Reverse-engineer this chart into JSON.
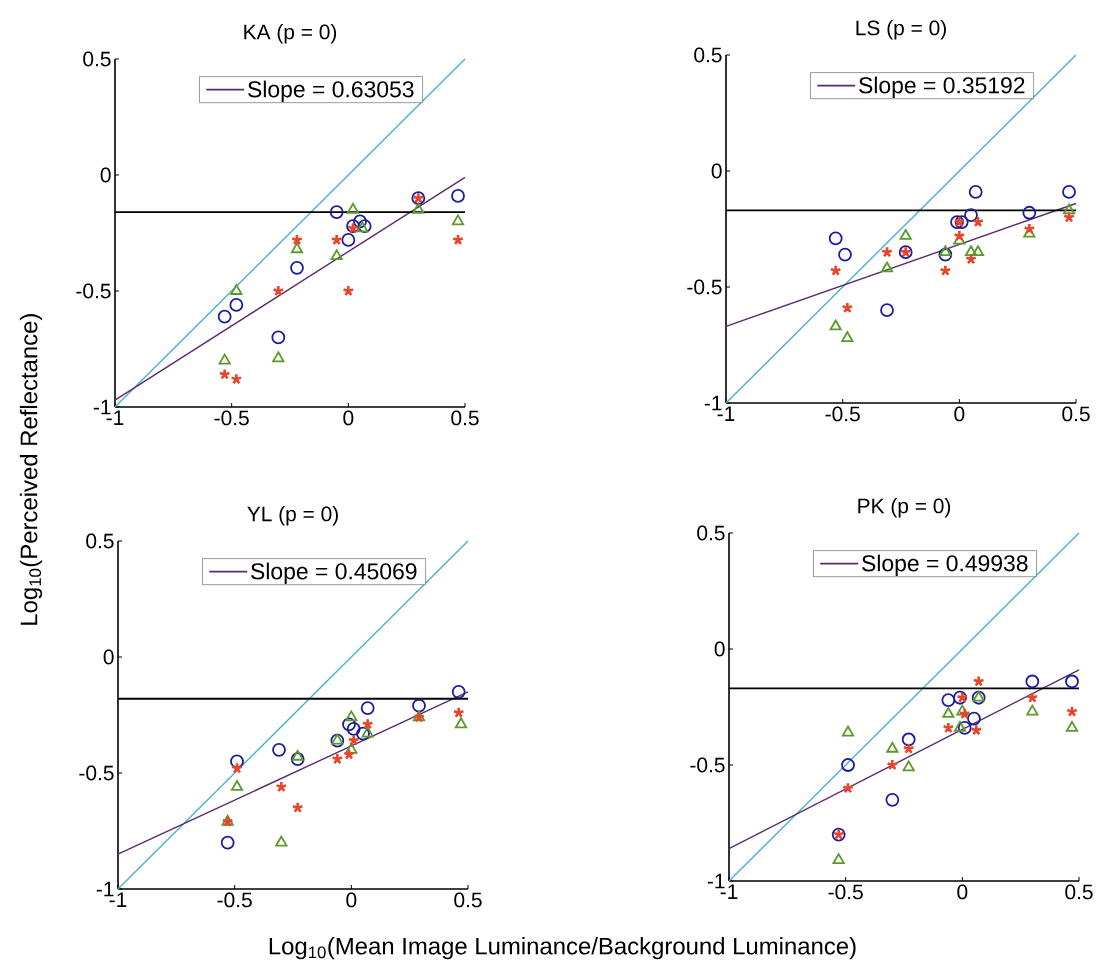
{
  "chart_data": [
    {
      "type": "scatter",
      "title": "KA (p = 0)",
      "ylabel": "Log$_{10}$(Perceived Reflectance)",
      "xlim": [
        -1,
        0.5
      ],
      "ylim": [
        -1,
        0.5
      ],
      "xticks": [
        -1,
        -0.5,
        0,
        0.5
      ],
      "yticks": [
        -1,
        -0.5,
        0,
        0.5
      ],
      "legend": "top",
      "ref_lines": [
        {
          "axis": "y",
          "value": -0.16,
          "color": "#000000"
        }
      ],
      "series": [
        {
          "type": "scatter",
          "marker": "circle",
          "color": "#1c1c9c",
          "x": [
            -0.53,
            -0.48,
            -0.3,
            -0.22,
            -0.05,
            0,
            0.02,
            0.05,
            0.07,
            0.3,
            0.47
          ],
          "values": [
            -0.61,
            -0.56,
            -0.7,
            -0.4,
            -0.16,
            -0.28,
            -0.22,
            -0.2,
            -0.22,
            -0.1,
            -0.09
          ]
        },
        {
          "type": "scatter",
          "marker": "triangle",
          "color": "#5a9a2a",
          "x": [
            -0.53,
            -0.48,
            -0.3,
            -0.22,
            -0.05,
            0.02,
            0.06,
            0.3,
            0.47
          ],
          "values": [
            -0.8,
            -0.5,
            -0.79,
            -0.32,
            -0.35,
            -0.15,
            -0.23,
            -0.15,
            -0.2
          ]
        },
        {
          "type": "scatter",
          "marker": "cross",
          "color": "#e8452a",
          "x": [
            -0.53,
            -0.48,
            -0.3,
            -0.22,
            -0.05,
            0,
            0.02,
            0.3,
            0.47
          ],
          "values": [
            -0.86,
            -0.88,
            -0.5,
            -0.28,
            -0.28,
            -0.5,
            -0.23,
            -0.1,
            -0.28
          ]
        },
        {
          "type": "line",
          "color": "#4ab0d0",
          "x": [
            -1,
            0.5
          ],
          "values": [
            -1,
            0.5
          ]
        },
        {
          "type": "line",
          "name": "Slope = 0.63053",
          "color": "#5b2a6e",
          "x": [
            -1,
            0.5
          ],
          "values": [
            -0.97,
            -0.01
          ]
        }
      ]
    },
    {
      "type": "scatter",
      "title": "LS (p = 0)",
      "xlim": [
        -1,
        0.5
      ],
      "ylim": [
        -1,
        0.5
      ],
      "xticks": [
        -1,
        -0.5,
        0,
        0.5
      ],
      "yticks": [
        -1,
        -0.5,
        0,
        0.5
      ],
      "legend": "top",
      "ref_lines": [
        {
          "axis": "y",
          "value": -0.17,
          "color": "#000000"
        }
      ],
      "series": [
        {
          "type": "scatter",
          "marker": "circle",
          "color": "#1c1c9c",
          "x": [
            -0.53,
            -0.49,
            -0.31,
            -0.23,
            -0.06,
            -0.01,
            0.01,
            0.05,
            0.07,
            0.3,
            0.47
          ],
          "values": [
            -0.29,
            -0.36,
            -0.6,
            -0.35,
            -0.36,
            -0.22,
            -0.22,
            -0.19,
            -0.09,
            -0.18,
            -0.09
          ]
        },
        {
          "type": "scatter",
          "marker": "triangle",
          "color": "#5a9a2a",
          "x": [
            -0.53,
            -0.48,
            -0.31,
            -0.23,
            -0.06,
            0,
            0.05,
            0.08,
            0.3,
            0.47
          ],
          "values": [
            -0.67,
            -0.72,
            -0.42,
            -0.28,
            -0.35,
            -0.3,
            -0.35,
            -0.35,
            -0.27,
            -0.17
          ]
        },
        {
          "type": "scatter",
          "marker": "cross",
          "color": "#e8452a",
          "x": [
            -0.53,
            -0.48,
            -0.31,
            -0.23,
            -0.06,
            0,
            0,
            0.05,
            0.08,
            0.3,
            0.47
          ],
          "values": [
            -0.43,
            -0.59,
            -0.35,
            -0.35,
            -0.43,
            -0.28,
            -0.22,
            -0.38,
            -0.22,
            -0.25,
            -0.2
          ]
        },
        {
          "type": "line",
          "color": "#4ab0d0",
          "x": [
            -1,
            0.5
          ],
          "values": [
            -1,
            0.5
          ]
        },
        {
          "type": "line",
          "name": "Slope = 0.35192",
          "color": "#5b2a6e",
          "x": [
            -1,
            0.5
          ],
          "values": [
            -0.67,
            -0.14
          ]
        }
      ]
    },
    {
      "type": "scatter",
      "title": "YL (p = 0)",
      "xlabel": "Log$_{10}$(Mean Image Luminance/Background Luminance)",
      "xlim": [
        -1,
        0.5
      ],
      "ylim": [
        -1,
        0.5
      ],
      "xticks": [
        -1,
        -0.5,
        0,
        0.5
      ],
      "yticks": [
        -1,
        -0.5,
        0,
        0.5
      ],
      "legend": "top",
      "ref_lines": [
        {
          "axis": "y",
          "value": -0.18,
          "color": "#000000"
        }
      ],
      "series": [
        {
          "type": "scatter",
          "marker": "circle",
          "color": "#1c1c9c",
          "x": [
            -0.53,
            -0.49,
            -0.31,
            -0.23,
            -0.06,
            -0.01,
            0.01,
            0.05,
            0.07,
            0.29,
            0.46
          ],
          "values": [
            -0.8,
            -0.45,
            -0.4,
            -0.44,
            -0.36,
            -0.29,
            -0.31,
            -0.33,
            -0.22,
            -0.21,
            -0.15
          ]
        },
        {
          "type": "scatter",
          "marker": "triangle",
          "color": "#5a9a2a",
          "x": [
            -0.53,
            -0.49,
            -0.3,
            -0.23,
            -0.06,
            0,
            0,
            0.07,
            0.29,
            0.47
          ],
          "values": [
            -0.71,
            -0.56,
            -0.8,
            -0.43,
            -0.36,
            -0.26,
            -0.4,
            -0.33,
            -0.26,
            -0.29
          ]
        },
        {
          "type": "scatter",
          "marker": "cross",
          "color": "#e8452a",
          "x": [
            -0.53,
            -0.49,
            -0.3,
            -0.23,
            -0.06,
            -0.01,
            0.01,
            0.07,
            0.29,
            0.46
          ],
          "values": [
            -0.71,
            -0.48,
            -0.56,
            -0.65,
            -0.44,
            -0.42,
            -0.36,
            -0.29,
            -0.26,
            -0.24
          ]
        },
        {
          "type": "line",
          "color": "#4ab0d0",
          "x": [
            -1,
            0.5
          ],
          "values": [
            -1,
            0.5
          ]
        },
        {
          "type": "line",
          "name": "Slope = 0.45069",
          "color": "#5b2a6e",
          "x": [
            -1,
            0.5
          ],
          "values": [
            -0.85,
            -0.15
          ]
        }
      ]
    },
    {
      "type": "scatter",
      "title": "PK (p = 0)",
      "xlim": [
        -1,
        0.5
      ],
      "ylim": [
        -1,
        0.5
      ],
      "xticks": [
        -1,
        -0.5,
        0,
        0.5
      ],
      "yticks": [
        -1,
        -0.5,
        0,
        0.5
      ],
      "legend": "top",
      "ref_lines": [
        {
          "axis": "y",
          "value": -0.17,
          "color": "#000000"
        }
      ],
      "series": [
        {
          "type": "scatter",
          "marker": "circle",
          "color": "#1c1c9c",
          "x": [
            -0.53,
            -0.49,
            -0.3,
            -0.23,
            -0.06,
            -0.01,
            0.01,
            0.05,
            0.07,
            0.3,
            0.47
          ],
          "values": [
            -0.8,
            -0.5,
            -0.65,
            -0.39,
            -0.22,
            -0.21,
            -0.34,
            -0.3,
            -0.21,
            -0.14,
            -0.14
          ]
        },
        {
          "type": "scatter",
          "marker": "triangle",
          "color": "#5a9a2a",
          "x": [
            -0.53,
            -0.49,
            -0.3,
            -0.23,
            -0.06,
            -0.01,
            0,
            0.07,
            0.3,
            0.47
          ],
          "values": [
            -0.91,
            -0.36,
            -0.43,
            -0.51,
            -0.28,
            -0.34,
            -0.27,
            -0.21,
            -0.27,
            -0.34
          ]
        },
        {
          "type": "scatter",
          "marker": "cross",
          "color": "#e8452a",
          "x": [
            -0.53,
            -0.49,
            -0.3,
            -0.23,
            -0.06,
            0,
            0.01,
            0.06,
            0.07,
            0.3,
            0.47
          ],
          "values": [
            -0.8,
            -0.6,
            -0.5,
            -0.43,
            -0.34,
            -0.21,
            -0.28,
            -0.35,
            -0.14,
            -0.21,
            -0.27
          ]
        },
        {
          "type": "line",
          "color": "#4ab0d0",
          "x": [
            -1,
            0.5
          ],
          "values": [
            -1,
            0.5
          ]
        },
        {
          "type": "line",
          "name": "Slope = 0.49938",
          "color": "#5b2a6e",
          "x": [
            -1,
            0.5
          ],
          "values": [
            -0.86,
            -0.09
          ]
        }
      ]
    }
  ]
}
